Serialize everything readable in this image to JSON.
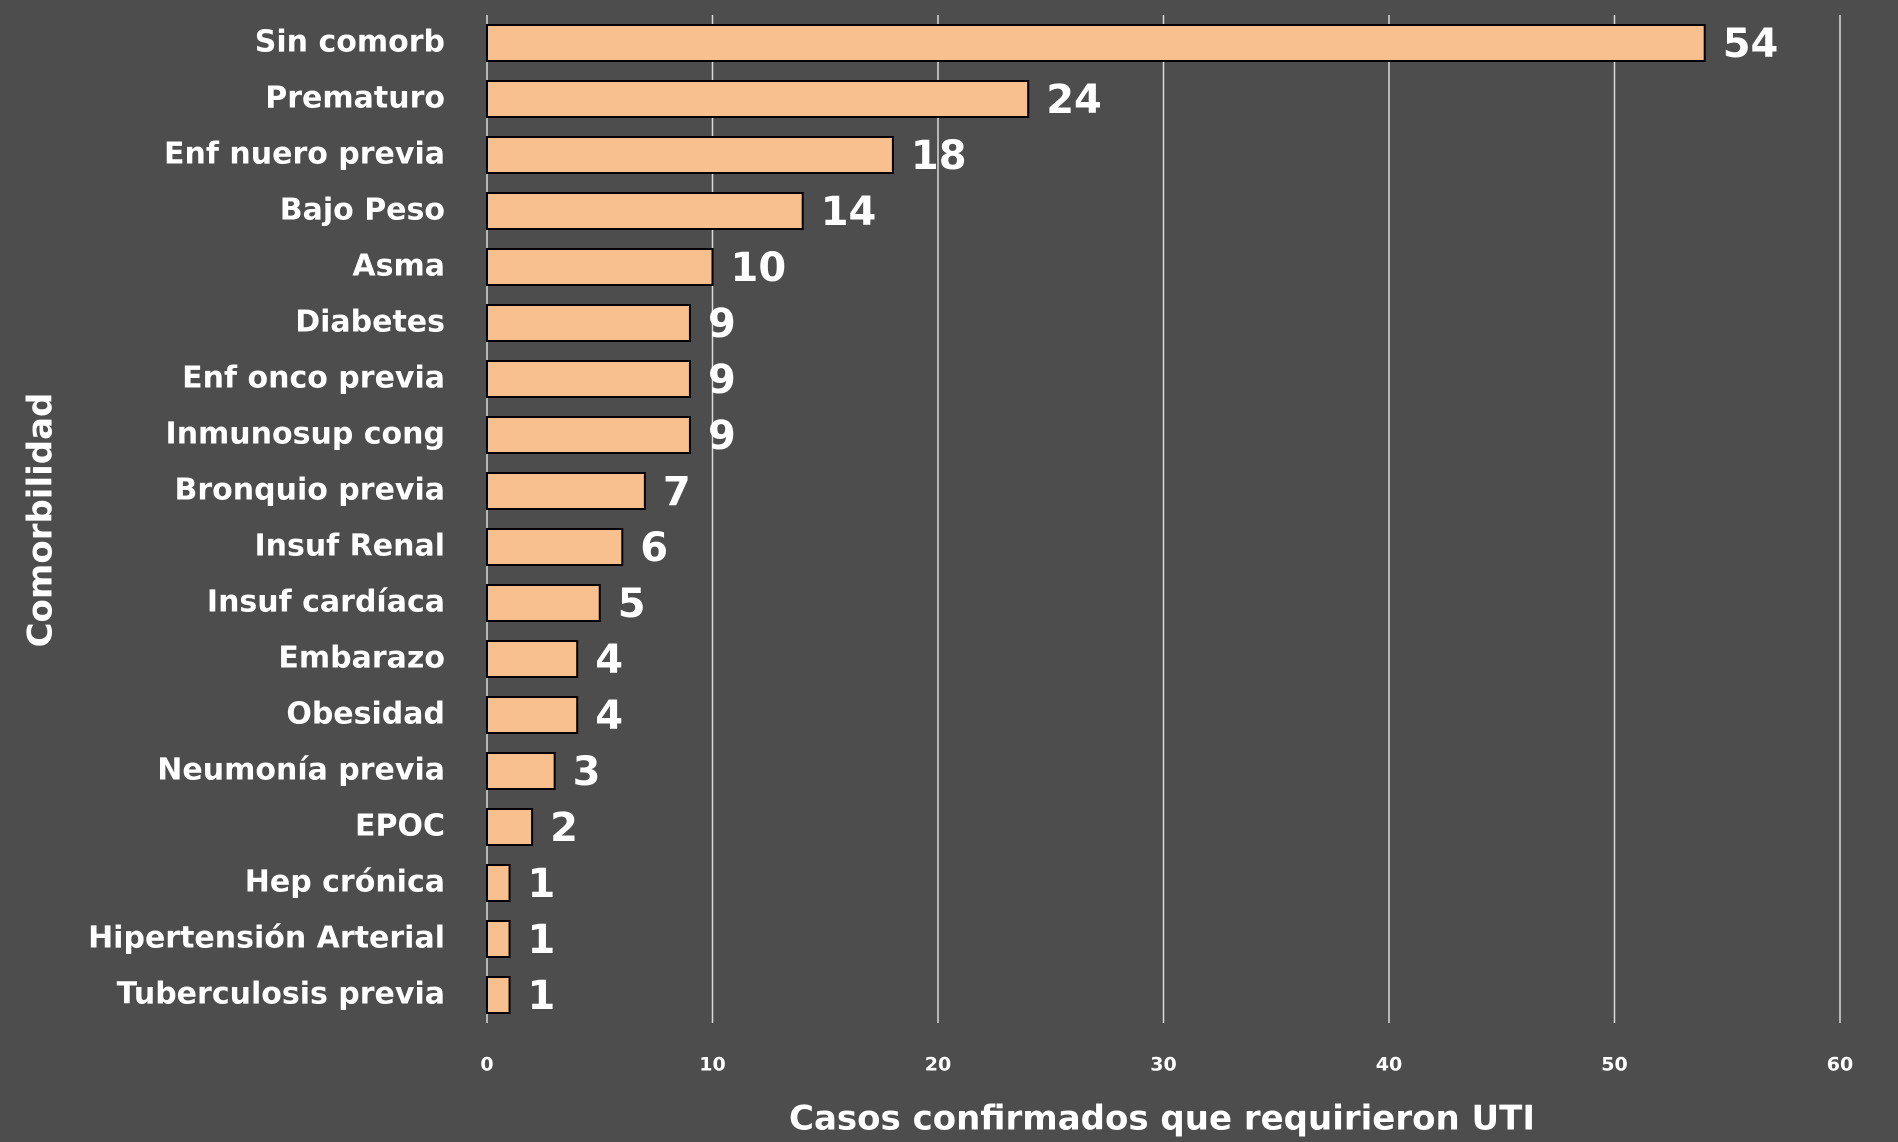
{
  "chart_data": {
    "type": "barh",
    "xlabel": "Casos confirmados que requirieron UTI",
    "ylabel": "Comorbilidad",
    "categories": [
      "Sin comorb",
      "Prematuro",
      "Enf nuero previa",
      "Bajo Peso",
      "Asma",
      "Diabetes",
      "Enf onco previa",
      "Inmunosup cong",
      "Bronquio previa",
      "Insuf Renal",
      "Insuf cardíaca",
      "Embarazo",
      "Obesidad",
      "Neumonía previa",
      "EPOC",
      "Hep crónica",
      "Hipertensión Arterial",
      "Tuberculosis previa"
    ],
    "values": [
      54,
      24,
      18,
      14,
      10,
      9,
      9,
      9,
      7,
      6,
      5,
      4,
      4,
      3,
      2,
      1,
      1,
      1
    ],
    "color": "#f9c08f",
    "xlim": [
      0,
      60
    ],
    "xticks": [
      0,
      10,
      20,
      30,
      40,
      50,
      60
    ],
    "grid": true
  }
}
